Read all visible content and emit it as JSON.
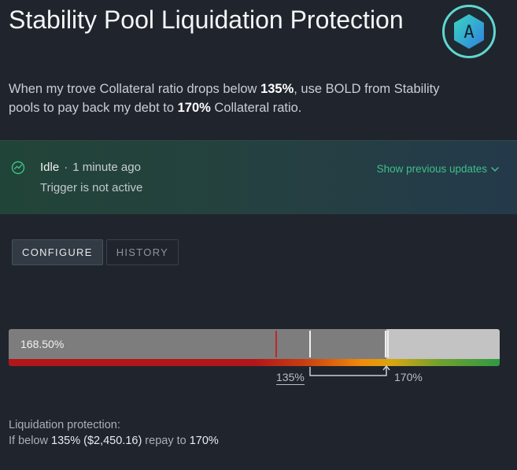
{
  "header": {
    "title": "Stability Pool Liquidation Protection",
    "badge_letter": "A",
    "badge_icon": "hexagon-a-logo"
  },
  "description": {
    "part1": "When my trove Collateral ratio drops below ",
    "trigger_ratio": "135%",
    "part2": ", use BOLD from Stability pools to pay back my debt to ",
    "target_ratio": "170%",
    "part3": " Collateral ratio."
  },
  "status": {
    "icon": "gauge-icon",
    "state": "Idle",
    "separator": "·",
    "time_ago": "1 minute ago",
    "detail": "Trigger is not active",
    "show_previous_label": "Show previous updates",
    "accent_color": "#3fbf8a"
  },
  "tabs": [
    {
      "label": "CONFIGURE",
      "active": true
    },
    {
      "label": "HISTORY",
      "active": false
    }
  ],
  "ratio_bar": {
    "current_value": "168.50%",
    "trigger_label": "135%",
    "target_label": "170%"
  },
  "summary": {
    "line1": "Liquidation protection:",
    "prefix": "If below ",
    "trigger": "135% ($2,450.16)",
    "mid": " repay to ",
    "target": "170%"
  }
}
